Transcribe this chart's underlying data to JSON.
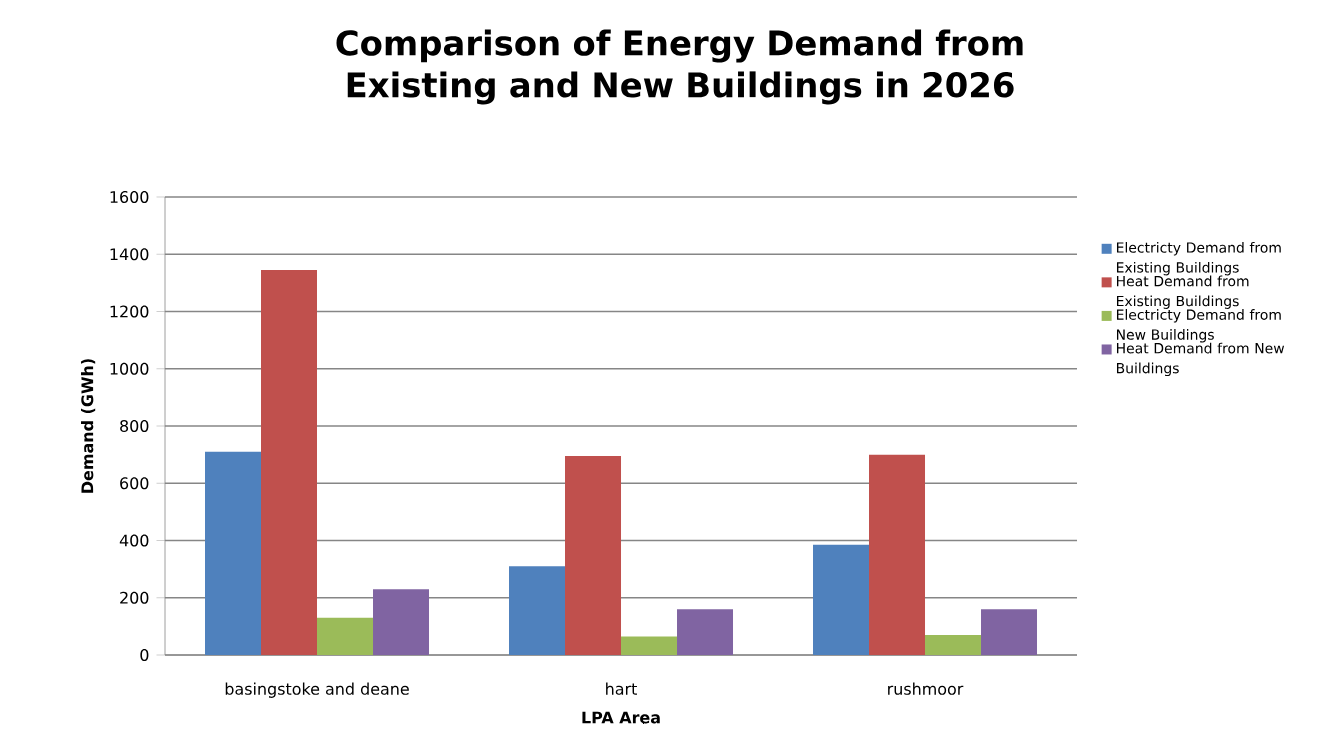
{
  "chart_data": {
    "type": "bar",
    "title": "Comparison of Energy Demand from Existing and New Buildings in 2026",
    "xlabel": "LPA Area",
    "ylabel": "Demand (GWh)",
    "categories": [
      "basingstoke and deane",
      "hart",
      "rushmoor"
    ],
    "series": [
      {
        "name": "Electricty Demand from Existing Buildings",
        "color": "#4f81bd",
        "values": [
          710,
          310,
          385
        ]
      },
      {
        "name": "Heat Demand from Existing Buildings",
        "color": "#c0504d",
        "values": [
          1345,
          695,
          700
        ]
      },
      {
        "name": "Electricty Demand from New Buildings",
        "color": "#9bbb59",
        "values": [
          130,
          65,
          70
        ]
      },
      {
        "name": "Heat Demand from New Buildings",
        "color": "#8064a2",
        "values": [
          230,
          160,
          160
        ]
      }
    ],
    "ylim": [
      0,
      1600
    ],
    "yticks": [
      0,
      200,
      400,
      600,
      800,
      1000,
      1200,
      1400,
      1600
    ],
    "grid": "y",
    "legend": "right"
  }
}
